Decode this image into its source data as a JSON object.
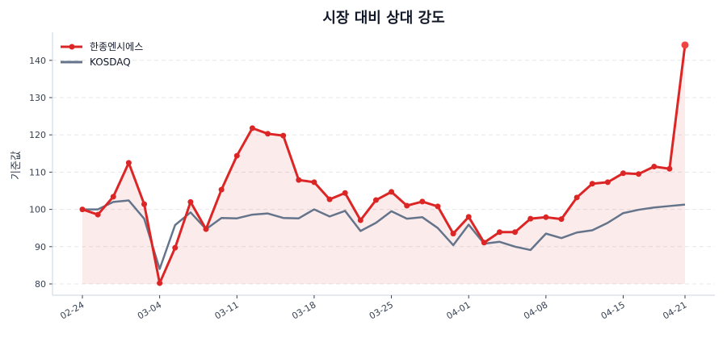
{
  "chart_data": {
    "type": "line",
    "title": "시장 대비 상대 강도",
    "xlabel": "",
    "ylabel": "기준값",
    "ylim": [
      77,
      147
    ],
    "yticks": [
      80,
      90,
      100,
      110,
      120,
      130,
      140
    ],
    "grid": "horizontal-dashed",
    "legend_position": "top-left",
    "x": [
      "02-24",
      "02-25",
      "02-26",
      "02-27",
      "02-28",
      "03-04",
      "03-05",
      "03-06",
      "03-07",
      "03-10",
      "03-11",
      "03-12",
      "03-13",
      "03-14",
      "03-17",
      "03-18",
      "03-19",
      "03-20",
      "03-21",
      "03-24",
      "03-25",
      "03-26",
      "03-27",
      "03-28",
      "03-31",
      "04-01",
      "04-02",
      "04-03",
      "04-04",
      "04-07",
      "04-08",
      "04-09",
      "04-10",
      "04-11",
      "04-14",
      "04-15",
      "04-16",
      "04-17",
      "04-18",
      "04-21"
    ],
    "xtick_labels": [
      "02-24",
      "03-04",
      "03-11",
      "03-18",
      "03-25",
      "04-01",
      "04-08",
      "04-15",
      "04-21"
    ],
    "series": [
      {
        "name": "한종엔시에스",
        "color": "#dc2626",
        "markers": true,
        "fill_to": 80,
        "values": [
          100,
          98.6,
          103.4,
          112.5,
          101.4,
          80.2,
          89.7,
          102.0,
          94.7,
          105.3,
          114.4,
          121.8,
          120.3,
          119.8,
          107.9,
          107.3,
          102.7,
          104.4,
          97.1,
          102.5,
          104.7,
          101.0,
          102.1,
          100.8,
          93.5,
          98.0,
          91.1,
          93.9,
          93.9,
          97.5,
          97.9,
          97.4,
          103.2,
          106.9,
          107.3,
          109.7,
          109.5,
          111.5,
          110.9,
          144.1
        ]
      },
      {
        "name": "KOSDAQ",
        "color": "#64748b",
        "markers": false,
        "values": [
          100,
          100,
          102,
          102.4,
          97.5,
          84,
          95.8,
          99.2,
          94.7,
          97.7,
          97.6,
          98.6,
          98.9,
          97.7,
          97.6,
          100,
          98.1,
          99.6,
          94.2,
          96.4,
          99.5,
          97.5,
          97.9,
          95,
          90.4,
          95.9,
          90.8,
          91.3,
          90,
          89.1,
          93.5,
          92.3,
          93.8,
          94.4,
          96.4,
          99,
          99.9,
          100.5,
          100.9,
          101.3
        ]
      }
    ]
  }
}
